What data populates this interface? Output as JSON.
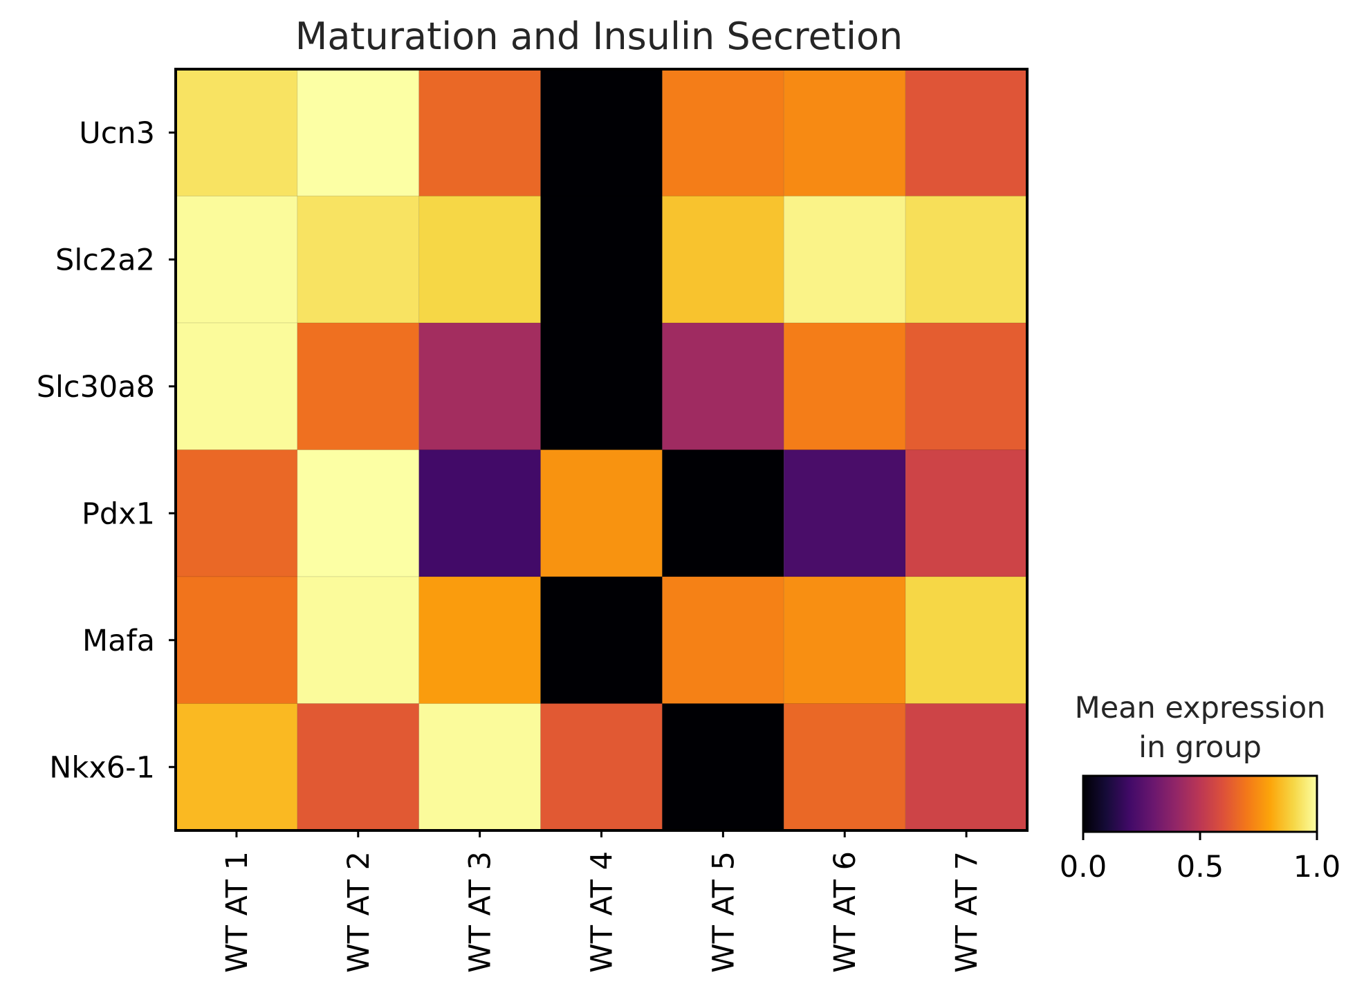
{
  "chart_data": {
    "type": "heatmap",
    "title": "Maturation and Insulin Secretion",
    "rows": [
      "Ucn3",
      "Slc2a2",
      "Slc30a8",
      "Pdx1",
      "Mafa",
      "Nkx6-1"
    ],
    "columns": [
      "WT AT 1",
      "WT AT 2",
      "WT AT 3",
      "WT AT 4",
      "WT AT 5",
      "WT AT 6",
      "WT AT 7"
    ],
    "values": [
      [
        0.93,
        1.0,
        0.66,
        0.0,
        0.71,
        0.74,
        0.61
      ],
      [
        0.99,
        0.93,
        0.9,
        0.0,
        0.86,
        0.97,
        0.92
      ],
      [
        0.99,
        0.68,
        0.44,
        0.0,
        0.43,
        0.71,
        0.63
      ],
      [
        0.66,
        1.0,
        0.2,
        0.76,
        0.0,
        0.22,
        0.55
      ],
      [
        0.69,
        0.99,
        0.78,
        0.0,
        0.72,
        0.75,
        0.9
      ],
      [
        0.84,
        0.62,
        0.99,
        0.62,
        0.0,
        0.66,
        0.55
      ]
    ],
    "colormap": "inferno",
    "vmin": 0.0,
    "vmax": 1.0,
    "colorbar": {
      "label_line1": "Mean expression",
      "label_line2": "in group",
      "ticks": [
        "0.0",
        "0.5",
        "1.0"
      ]
    }
  }
}
